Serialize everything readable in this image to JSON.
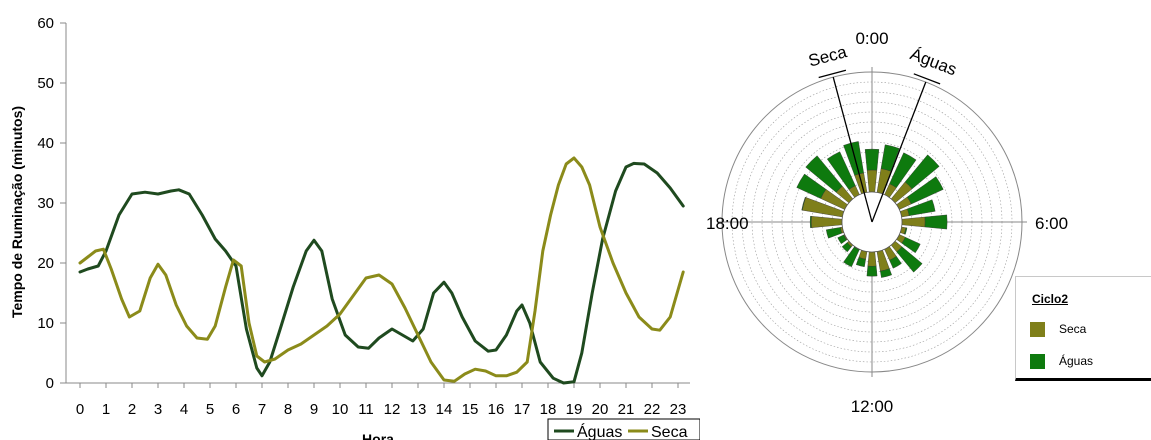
{
  "chart_data": [
    {
      "type": "line",
      "ylabel": "Tempo de Ruminação (minutos)",
      "xlabel": "Hora",
      "ylim": [
        0,
        60
      ],
      "yticks": [
        "0",
        "10",
        "20",
        "30",
        "40",
        "50",
        "60"
      ],
      "xticks": [
        "0",
        "1",
        "2",
        "3",
        "4",
        "5",
        "6",
        "7",
        "8",
        "9",
        "10",
        "11",
        "12",
        "13",
        "14",
        "15",
        "16",
        "17",
        "18",
        "19",
        "20",
        "21",
        "22",
        "23"
      ],
      "legend_position": "bottom-right",
      "series": [
        {
          "name": "Águas",
          "color": "#1f4a1f",
          "x": [
            0,
            0.3,
            0.7,
            1,
            1.5,
            2,
            2.5,
            3,
            3.5,
            3.8,
            4.2,
            4.7,
            5.2,
            5.6,
            6,
            6.4,
            6.8,
            7,
            7.3,
            7.7,
            8.2,
            8.7,
            9,
            9.3,
            9.7,
            10.2,
            10.7,
            11.1,
            11.5,
            12,
            12.4,
            12.8,
            13.2,
            13.6,
            14,
            14.3,
            14.7,
            15.2,
            15.7,
            16,
            16.4,
            16.8,
            17,
            17.3,
            17.7,
            18.2,
            18.6,
            19,
            19.3,
            19.7,
            20.1,
            20.6,
            21,
            21.3,
            21.7,
            22.2,
            22.7,
            23.2
          ],
          "values": [
            18.5,
            19,
            19.5,
            22,
            28,
            31.5,
            31.8,
            31.5,
            32,
            32.2,
            31.5,
            28,
            24,
            22,
            19.5,
            9,
            2.5,
            1.2,
            3.5,
            9,
            16,
            22,
            23.8,
            22,
            14,
            8,
            6,
            5.8,
            7.5,
            9,
            8,
            7,
            9,
            15,
            16.8,
            15,
            11,
            7,
            5.3,
            5.5,
            8,
            12,
            13,
            10,
            3.5,
            0.8,
            0,
            0.2,
            5,
            15,
            24,
            32,
            36,
            36.6,
            36.5,
            35,
            32.5,
            29.5
          ]
        },
        {
          "name": "Seca",
          "color": "#8b8b1a",
          "x": [
            0,
            0.3,
            0.6,
            0.9,
            1.2,
            1.6,
            1.9,
            2.3,
            2.7,
            3,
            3.3,
            3.7,
            4.1,
            4.5,
            4.9,
            5.2,
            5.6,
            5.9,
            6.2,
            6.5,
            6.8,
            7.1,
            7.5,
            8,
            8.5,
            9,
            9.5,
            10,
            10.5,
            11,
            11.5,
            12,
            12.5,
            13,
            13.5,
            14,
            14.4,
            14.8,
            15.2,
            15.6,
            16,
            16.4,
            16.8,
            17.2,
            17.5,
            17.8,
            18.1,
            18.4,
            18.7,
            19,
            19.3,
            19.6,
            20,
            20.5,
            21,
            21.5,
            22,
            22.3,
            22.7,
            23.2
          ],
          "values": [
            20,
            21,
            22,
            22.3,
            19,
            14,
            11,
            12,
            17.5,
            19.8,
            18,
            13,
            9.5,
            7.5,
            7.3,
            9.5,
            16,
            20.5,
            19.5,
            10,
            4.5,
            3.5,
            4,
            5.5,
            6.5,
            8,
            9.5,
            11.5,
            14.5,
            17.5,
            18,
            16.5,
            12.5,
            8,
            3.5,
            0.5,
            0.3,
            1.5,
            2.3,
            2,
            1.2,
            1.2,
            1.8,
            3.5,
            12,
            22,
            28,
            33,
            36.5,
            37.5,
            36,
            33,
            26,
            20,
            15,
            11,
            9,
            8.8,
            11,
            18.5
          ]
        }
      ]
    },
    {
      "type": "bar",
      "polar": true,
      "hour_labels": [
        "0:00",
        "6:00",
        "12:00",
        "18:00"
      ],
      "legend_title": "Ciclo2",
      "legend_position": "bottom-right",
      "series": [
        {
          "name": "Seca",
          "color": "#7f7f1a",
          "values": [
            20,
            22,
            11,
            20,
            12,
            7,
            21,
            4,
            6,
            8,
            11,
            18,
            13,
            7,
            0.5,
            2,
            1,
            2,
            28,
            37,
            24,
            15,
            9,
            18
          ]
        },
        {
          "name": "Águas",
          "color": "#0e7a0e",
          "values": [
            19,
            22,
            31,
            32,
            32,
            24,
            20,
            1,
            15,
            24,
            8,
            6,
            9,
            7,
            17,
            6,
            6,
            13,
            1,
            0.5,
            24,
            36,
            34,
            29
          ]
        }
      ],
      "annotations": [
        {
          "label": "Seca",
          "hour": 23
        },
        {
          "label": "Águas",
          "hour": 1.4
        }
      ]
    }
  ]
}
